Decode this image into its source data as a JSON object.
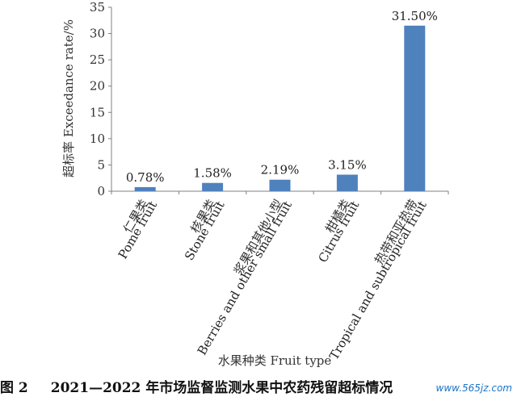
{
  "chart_data": {
    "type": "bar",
    "ylabel": "超标率 Exceedance rate/%",
    "xlabel": "水果种类 Fruit type",
    "ylim": [
      0,
      35
    ],
    "yticks": [
      0,
      5,
      10,
      15,
      20,
      25,
      30,
      35
    ],
    "grid": false,
    "bar_color": "#4f81bd",
    "categories": [
      {
        "zh": "仁果类",
        "en": "Pome fruit"
      },
      {
        "zh": "核果类",
        "en": "Stone fruit"
      },
      {
        "zh": "浆果和其他小型",
        "en": "Berries and other small fruit"
      },
      {
        "zh": "柑橘类",
        "en": "Citrus fruit"
      },
      {
        "zh": "热带和亚热带",
        "en": "Tropical and subtropical fruit"
      }
    ],
    "values": [
      0.78,
      1.58,
      2.19,
      3.15,
      31.5
    ],
    "data_labels": [
      "0.78%",
      "1.58%",
      "2.19%",
      "3.15%",
      "31.50%"
    ]
  },
  "caption": {
    "label": "图 2",
    "text": "2021—2022 年市场监督监测水果中农药残留超标情况"
  },
  "watermark": "www.565jz.com"
}
